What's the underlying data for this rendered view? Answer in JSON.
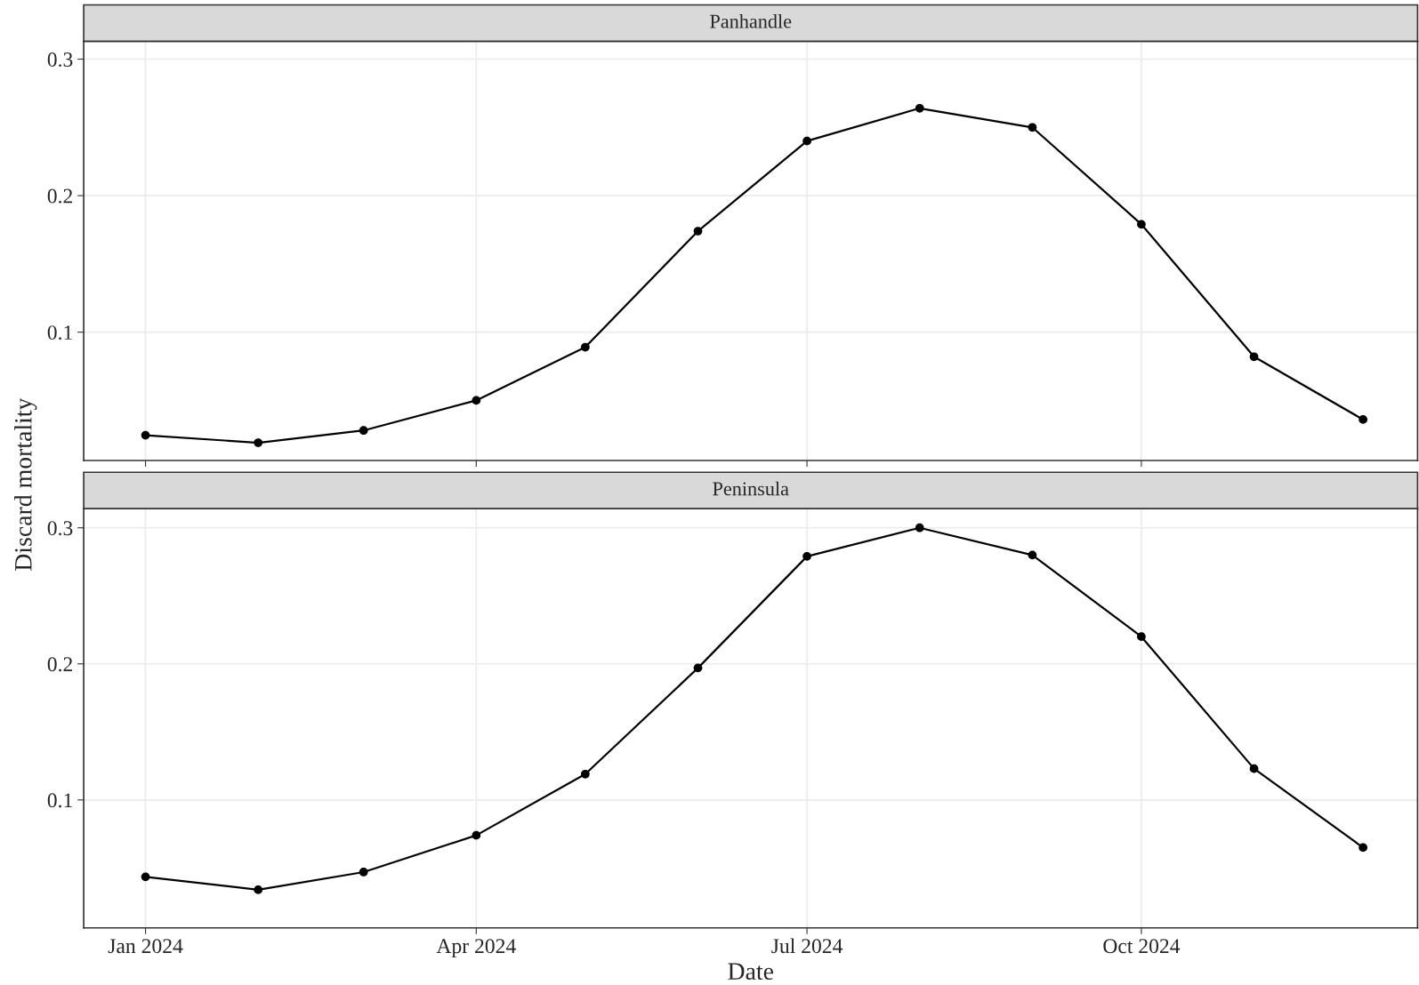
{
  "chart_data": [
    {
      "type": "line",
      "title": "Panhandle",
      "ylabel": "Discard mortality",
      "x": [
        "2024-01-01",
        "2024-02-01",
        "2024-03-01",
        "2024-04-01",
        "2024-05-01",
        "2024-06-01",
        "2024-07-01",
        "2024-08-01",
        "2024-09-01",
        "2024-10-01",
        "2024-11-01",
        "2024-12-01"
      ],
      "series": [
        {
          "color": "#000000",
          "values": [
            0.0245,
            0.019,
            0.028,
            0.05,
            0.089,
            0.174,
            0.24,
            0.264,
            0.25,
            0.179,
            0.082,
            0.036
          ]
        }
      ],
      "marker": "circle",
      "line_style": "solid",
      "grid": true,
      "xlim": [
        "2023-12-15",
        "2024-12-16"
      ],
      "ylim": [
        0.006,
        0.313
      ],
      "yticks": [
        0.1,
        0.2,
        0.3
      ],
      "xticks": [
        {
          "value": "2024-01-01",
          "label": null
        },
        {
          "value": "2024-04-01",
          "label": null
        },
        {
          "value": "2024-07-01",
          "label": null
        },
        {
          "value": "2024-10-01",
          "label": null
        }
      ],
      "tick_labels": "y"
    },
    {
      "type": "line",
      "title": "Peninsula",
      "xlabel": "Date",
      "x": [
        "2024-01-01",
        "2024-02-01",
        "2024-03-01",
        "2024-04-01",
        "2024-05-01",
        "2024-06-01",
        "2024-07-01",
        "2024-08-01",
        "2024-09-01",
        "2024-10-01",
        "2024-11-01",
        "2024-12-01"
      ],
      "series": [
        {
          "color": "#000000",
          "values": [
            0.0435,
            0.034,
            0.047,
            0.074,
            0.119,
            0.197,
            0.279,
            0.3,
            0.28,
            0.22,
            0.123,
            0.065
          ]
        }
      ],
      "marker": "circle",
      "line_style": "solid",
      "grid": true,
      "xlim": [
        "2023-12-15",
        "2024-12-16"
      ],
      "ylim": [
        0.006,
        0.314
      ],
      "yticks": [
        0.1,
        0.2,
        0.3
      ],
      "xticks": [
        {
          "value": "2024-01-01",
          "label": "Jan 2024"
        },
        {
          "value": "2024-04-01",
          "label": "Apr 2024"
        },
        {
          "value": "2024-07-01",
          "label": "Jul 2024"
        },
        {
          "value": "2024-10-01",
          "label": "Oct 2024"
        }
      ]
    }
  ]
}
